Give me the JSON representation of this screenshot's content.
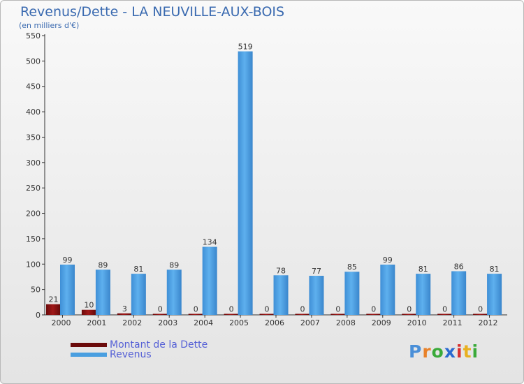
{
  "header": {
    "title": "Revenus/Dette - LA NEUVILLE-AUX-BOIS",
    "subtitle": "(en milliers d'€)"
  },
  "chart_data": {
    "type": "bar",
    "categories": [
      "2000",
      "2001",
      "2002",
      "2003",
      "2004",
      "2005",
      "2006",
      "2007",
      "2008",
      "2009",
      "2010",
      "2011",
      "2012"
    ],
    "series": [
      {
        "name": "Montant de la Dette",
        "color": "#7a1010",
        "values": [
          21,
          10,
          3,
          0,
          0,
          0,
          0,
          0,
          0,
          0,
          0,
          0,
          0
        ]
      },
      {
        "name": "Revenus",
        "color": "#4a9fe0",
        "values": [
          99,
          89,
          81,
          89,
          134,
          519,
          78,
          77,
          85,
          99,
          81,
          86,
          81
        ]
      }
    ],
    "ylim": [
      0,
      550
    ],
    "yticks": [
      0,
      50,
      100,
      150,
      200,
      250,
      300,
      350,
      400,
      450,
      500,
      550
    ],
    "grid": false,
    "legend_position": "bottom-left"
  },
  "legend": {
    "items": [
      {
        "label": "Montant de la Dette",
        "color": "#6b0b0b"
      },
      {
        "label": "Revenus",
        "color": "#4a9fe0"
      }
    ]
  },
  "logo": {
    "text": "Proxiti",
    "letters": [
      {
        "ch": "P",
        "color": "#4a8fd8"
      },
      {
        "ch": "r",
        "color": "#e8822a"
      },
      {
        "ch": "o",
        "color": "#3aaa3a"
      },
      {
        "ch": "x",
        "color": "#2a6ad0"
      },
      {
        "ch": "i",
        "color": "#d83030"
      },
      {
        "ch": "t",
        "color": "#e8b020"
      },
      {
        "ch": "i",
        "color": "#3aaa3a"
      }
    ]
  }
}
